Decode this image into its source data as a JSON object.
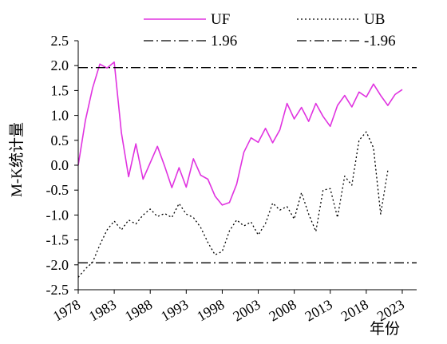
{
  "chart_data": {
    "type": "line",
    "xlabel": "年份",
    "ylabel": "M-K统计量",
    "xlim": [
      1978,
      2025
    ],
    "ylim": [
      -2.5,
      2.5
    ],
    "x_ticks": [
      "1978",
      "1983",
      "1988",
      "1993",
      "1998",
      "2003",
      "2008",
      "2013",
      "2018",
      "2023"
    ],
    "y_ticks": [
      "2.5",
      "2.0",
      "1.5",
      "1.0",
      "0.5",
      "0.0",
      "-0.5",
      "-1.0",
      "-1.5",
      "-2.0",
      "-2.5"
    ],
    "x": [
      1978,
      1979,
      1980,
      1981,
      1982,
      1983,
      1984,
      1985,
      1986,
      1987,
      1988,
      1989,
      1990,
      1991,
      1992,
      1993,
      1994,
      1995,
      1996,
      1997,
      1998,
      1999,
      2000,
      2001,
      2002,
      2003,
      2004,
      2005,
      2006,
      2007,
      2008,
      2009,
      2010,
      2011,
      2012,
      2013,
      2014,
      2015,
      2016,
      2017,
      2018,
      2019,
      2020,
      2021,
      2022,
      2023,
      2024,
      2025
    ],
    "series": [
      {
        "name": "UF",
        "color": "#e033e0",
        "style": "solid",
        "values": [
          0.0,
          0.9,
          1.55,
          2.03,
          1.95,
          2.07,
          0.65,
          -0.23,
          0.43,
          -0.28,
          0.05,
          0.38,
          -0.02,
          -0.45,
          -0.05,
          -0.44,
          0.13,
          -0.2,
          -0.28,
          -0.62,
          -0.8,
          -0.75,
          -0.38,
          0.26,
          0.55,
          0.46,
          0.74,
          0.45,
          0.71,
          1.24,
          0.93,
          1.16,
          0.88,
          1.24,
          0.98,
          0.78,
          1.2,
          1.4,
          1.17,
          1.47,
          1.37,
          1.63,
          1.4,
          1.2,
          1.42,
          1.52,
          null,
          null
        ]
      },
      {
        "name": "UB",
        "color": "#000000",
        "style": "dotted",
        "values": [
          -2.25,
          -2.08,
          -1.95,
          -1.6,
          -1.3,
          -1.12,
          -1.3,
          -1.1,
          -1.18,
          -1.0,
          -0.88,
          -1.03,
          -0.97,
          -1.05,
          -0.77,
          -0.98,
          -1.05,
          -1.25,
          -1.55,
          -1.8,
          -1.73,
          -1.32,
          -1.1,
          -1.22,
          -1.14,
          -1.4,
          -1.17,
          -0.76,
          -0.9,
          -0.83,
          -1.08,
          -0.55,
          -0.98,
          -1.33,
          -0.5,
          -0.47,
          -1.05,
          -0.22,
          -0.4,
          0.5,
          0.67,
          0.35,
          -0.98,
          -0.1,
          null,
          null,
          null,
          null
        ]
      },
      {
        "name": "1.96",
        "color": "#000000",
        "style": "dashdot",
        "constant": 1.96
      },
      {
        "name": "-1.96",
        "color": "#000000",
        "style": "dashdot",
        "constant": -1.96
      }
    ],
    "legend_position": "top",
    "grid": false
  }
}
